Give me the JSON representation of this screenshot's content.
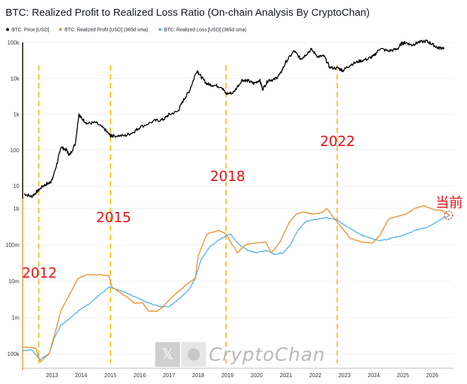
{
  "chart_data": {
    "type": "line",
    "title": "BTC: Realized Profit to Realized Loss Ratio (On-chain Analysis By CryptoChan)",
    "legend": [
      {
        "label": "BTC: Price [USD]",
        "color": "#000000"
      },
      {
        "label": "BTC: Realized Profit [USD] (365d sma)",
        "color": "#e8922e"
      },
      {
        "label": "BTC: Realized Loss [USD] (365d sma)",
        "color": "#5ab4e8"
      }
    ],
    "x_ticks": [
      "2013",
      "2014",
      "2015",
      "2016",
      "2017",
      "2018",
      "2019",
      "2020",
      "2021",
      "2022",
      "2023",
      "2024",
      "2025",
      "2026"
    ],
    "x_range": [
      2012.0,
      2026.6
    ],
    "top_panel": {
      "scale": "log",
      "y_ticks": [
        "100k",
        "10k",
        "1k",
        "100",
        "10"
      ],
      "y_tick_values": [
        100000,
        10000,
        1000,
        100,
        10
      ],
      "series": [
        {
          "name": "BTC: Price [USD]",
          "color": "#000000",
          "x": [
            2012.05,
            2012.3,
            2012.5,
            2012.7,
            2012.9,
            2013.0,
            2013.2,
            2013.3,
            2013.5,
            2013.6,
            2013.8,
            2013.92,
            2014.0,
            2014.2,
            2014.5,
            2014.8,
            2015.0,
            2015.1,
            2015.5,
            2015.8,
            2016.0,
            2016.5,
            2016.8,
            2017.0,
            2017.3,
            2017.5,
            2017.7,
            2017.96,
            2018.1,
            2018.3,
            2018.5,
            2018.8,
            2018.95,
            2019.2,
            2019.5,
            2019.7,
            2019.9,
            2020.1,
            2020.2,
            2020.4,
            2020.6,
            2020.8,
            2021.0,
            2021.28,
            2021.5,
            2021.6,
            2021.86,
            2022.1,
            2022.3,
            2022.5,
            2022.8,
            2022.95,
            2023.2,
            2023.5,
            2023.8,
            2024.0,
            2024.2,
            2024.5,
            2024.8,
            2024.96,
            2025.1,
            2025.3,
            2025.5,
            2025.8,
            2026.0,
            2026.2,
            2026.4
          ],
          "y": [
            6,
            5,
            7,
            10,
            12,
            14,
            50,
            120,
            100,
            70,
            150,
            1000,
            800,
            550,
            580,
            380,
            250,
            250,
            250,
            320,
            430,
            650,
            700,
            970,
            1200,
            2500,
            4500,
            17000,
            11000,
            7000,
            6500,
            5800,
            3700,
            4000,
            9000,
            8500,
            7200,
            9000,
            5000,
            9000,
            9200,
            13000,
            29000,
            58000,
            35000,
            40000,
            64000,
            40000,
            42000,
            20000,
            19000,
            16500,
            24000,
            30000,
            35000,
            42000,
            68000,
            58000,
            65000,
            95000,
            100000,
            85000,
            100000,
            110000,
            90000,
            70000,
            72000
          ]
        }
      ]
    },
    "bottom_panel": {
      "scale": "log",
      "y_ticks": [
        "1b",
        "100m",
        "10m",
        "1m",
        "100k"
      ],
      "y_tick_values": [
        1000000000,
        100000000,
        10000000,
        1000000,
        100000
      ],
      "series": [
        {
          "name": "BTC: Realized Profit [USD] (365d sma)",
          "color": "#e8922e",
          "x": [
            2012.0,
            2012.3,
            2012.45,
            2012.6,
            2012.9,
            2013.15,
            2013.3,
            2013.5,
            2013.9,
            2014.2,
            2014.6,
            2014.95,
            2015.05,
            2015.3,
            2015.6,
            2015.8,
            2016.1,
            2016.3,
            2016.6,
            2016.8,
            2017.0,
            2017.3,
            2017.6,
            2017.9,
            2018.0,
            2018.3,
            2018.7,
            2018.95,
            2019.1,
            2019.35,
            2019.6,
            2019.9,
            2020.3,
            2020.5,
            2020.8,
            2021.1,
            2021.35,
            2021.6,
            2021.9,
            2022.2,
            2022.4,
            2022.6,
            2022.9,
            2023.2,
            2023.6,
            2023.95,
            2024.2,
            2024.5,
            2024.8,
            2025.1,
            2025.4,
            2025.7,
            2026.1,
            2026.3,
            2026.6
          ],
          "y": [
            150000,
            150000,
            140000,
            60000,
            100000,
            500000,
            1500000,
            3000000,
            12000000,
            15000000,
            15000000,
            14000000,
            7000000,
            5000000,
            3500000,
            2500000,
            2500000,
            1500000,
            1500000,
            2000000,
            3000000,
            5000000,
            8000000,
            12000000,
            50000000,
            200000000,
            250000000,
            200000000,
            120000000,
            60000000,
            100000000,
            110000000,
            120000000,
            60000000,
            120000000,
            400000000,
            700000000,
            800000000,
            700000000,
            750000000,
            1000000000,
            600000000,
            300000000,
            150000000,
            120000000,
            110000000,
            180000000,
            500000000,
            600000000,
            700000000,
            1000000000,
            1200000000,
            900000000,
            900000000,
            650000000
          ]
        },
        {
          "name": "BTC: Realized Loss [USD] (365d sma)",
          "color": "#5ab4e8",
          "x": [
            2012.0,
            2012.3,
            2012.6,
            2012.9,
            2013.1,
            2013.3,
            2013.5,
            2013.9,
            2014.3,
            2014.6,
            2014.95,
            2015.2,
            2015.5,
            2015.9,
            2016.3,
            2016.7,
            2017.0,
            2017.3,
            2017.7,
            2017.9,
            2018.1,
            2018.4,
            2018.8,
            2019.1,
            2019.4,
            2019.7,
            2020.0,
            2020.3,
            2020.6,
            2020.9,
            2021.15,
            2021.4,
            2021.7,
            2022.0,
            2022.4,
            2022.7,
            2023.0,
            2023.3,
            2023.6,
            2023.9,
            2024.2,
            2024.6,
            2025.0,
            2025.4,
            2025.8,
            2026.1,
            2026.4,
            2026.6
          ],
          "y": [
            120000,
            130000,
            70000,
            100000,
            300000,
            600000,
            800000,
            1500000,
            2500000,
            4000000,
            7000000,
            6000000,
            5000000,
            3500000,
            2500000,
            2000000,
            2000000,
            3000000,
            6000000,
            12000000,
            40000000,
            90000000,
            150000000,
            200000000,
            100000000,
            70000000,
            60000000,
            70000000,
            55000000,
            60000000,
            100000000,
            250000000,
            450000000,
            500000000,
            550000000,
            500000000,
            350000000,
            250000000,
            180000000,
            150000000,
            130000000,
            150000000,
            180000000,
            250000000,
            300000000,
            400000000,
            550000000,
            650000000
          ]
        }
      ]
    },
    "annotations": [
      "2012",
      "2015",
      "2018",
      "2022",
      "当前"
    ],
    "vertical_markers_years": [
      2012.55,
      2015.0,
      2018.95,
      2022.75
    ],
    "current_marker": {
      "year": 2026.6,
      "panel": "bottom",
      "value": 650000000
    }
  },
  "watermark": {
    "text": "CryptoChan",
    "x_icon": "x-logo-icon"
  },
  "colors": {
    "price": "#000000",
    "profit": "#e8922e",
    "loss": "#5ab4e8",
    "marker": "#f5b800",
    "annotation": "#e8141a"
  }
}
